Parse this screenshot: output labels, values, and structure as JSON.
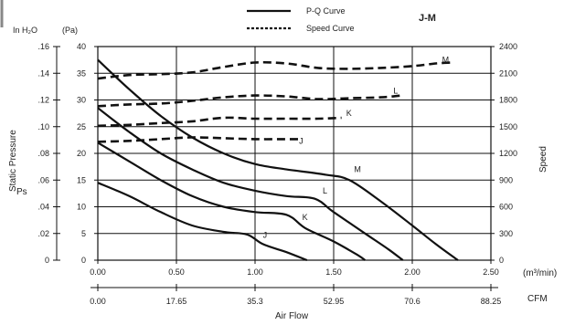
{
  "chart_data": {
    "type": "line",
    "title": "J-M",
    "legend": [
      {
        "label": "P-Q Curve",
        "style": "solid"
      },
      {
        "label": "Speed Curve",
        "style": "dotted"
      }
    ],
    "xlabel": "Air Flow",
    "x_unit_primary": "(m³/min)",
    "x_unit_secondary": "CFM",
    "xlim": [
      0,
      2.5
    ],
    "x_ticks": [
      "0.00",
      "0.50",
      "1.00",
      "1.50",
      "2.00",
      "2.50"
    ],
    "x_secondary_ticks": [
      "0.00",
      "17.65",
      "35.3",
      "52.95",
      "70.6",
      "88.25"
    ],
    "ylabel_left": "Static Pressure",
    "ylabel_left_symbol": "Ps",
    "y_unit_inh2o": "In H₂O",
    "y_unit_pa": "(Pa)",
    "ylim": [
      0,
      40
    ],
    "y_ticks_pa": [
      "0",
      "5",
      "10",
      "15",
      "20",
      "25",
      "30",
      "35",
      "40"
    ],
    "y_ticks_inh2o": [
      "0",
      ".02",
      ".04",
      ".06",
      ".08",
      ".10",
      ".12",
      ".14",
      ".16"
    ],
    "ylabel_right": "Speed",
    "y2lim": [
      0,
      2400
    ],
    "y2_ticks": [
      "0",
      "300",
      "600",
      "900",
      "1200",
      "1500",
      "1800",
      "2100",
      "2400"
    ],
    "grid": true,
    "pq_series": [
      {
        "name": "M",
        "label_at": [
          1.63,
          16.5
        ],
        "points": [
          [
            0,
            37.5
          ],
          [
            0.2,
            32
          ],
          [
            0.4,
            27
          ],
          [
            0.6,
            23
          ],
          [
            0.8,
            20
          ],
          [
            1.0,
            18
          ],
          [
            1.2,
            17
          ],
          [
            1.45,
            16
          ],
          [
            1.6,
            15
          ],
          [
            1.8,
            11
          ],
          [
            2.0,
            6.5
          ],
          [
            2.15,
            3
          ],
          [
            2.29,
            0
          ]
        ]
      },
      {
        "name": "L",
        "label_at": [
          1.43,
          12.5
        ],
        "points": [
          [
            0,
            28.5
          ],
          [
            0.2,
            24
          ],
          [
            0.4,
            20
          ],
          [
            0.6,
            17
          ],
          [
            0.8,
            14.5
          ],
          [
            1.0,
            13
          ],
          [
            1.2,
            12
          ],
          [
            1.38,
            11.5
          ],
          [
            1.5,
            9
          ],
          [
            1.7,
            5
          ],
          [
            1.85,
            2
          ],
          [
            1.94,
            0
          ]
        ]
      },
      {
        "name": "K",
        "label_at": [
          1.3,
          7.5
        ],
        "points": [
          [
            0,
            22
          ],
          [
            0.2,
            18.5
          ],
          [
            0.4,
            15
          ],
          [
            0.6,
            12
          ],
          [
            0.8,
            10
          ],
          [
            1.0,
            9
          ],
          [
            1.2,
            8.5
          ],
          [
            1.32,
            6
          ],
          [
            1.5,
            3.5
          ],
          [
            1.65,
            1
          ],
          [
            1.7,
            0
          ]
        ]
      },
      {
        "name": "J",
        "label_at": [
          1.05,
          4.2
        ],
        "points": [
          [
            0,
            14.5
          ],
          [
            0.2,
            12
          ],
          [
            0.4,
            9
          ],
          [
            0.6,
            6.5
          ],
          [
            0.8,
            5.3
          ],
          [
            0.95,
            4.8
          ],
          [
            1.05,
            3
          ],
          [
            1.2,
            1.5
          ],
          [
            1.33,
            0
          ]
        ]
      }
    ],
    "speed_series": [
      {
        "name": "M",
        "label_at": [
          2.19,
          2220
        ],
        "points": [
          [
            0,
            2040
          ],
          [
            0.2,
            2080
          ],
          [
            0.4,
            2090
          ],
          [
            0.6,
            2110
          ],
          [
            0.8,
            2170
          ],
          [
            1.0,
            2220
          ],
          [
            1.2,
            2210
          ],
          [
            1.4,
            2160
          ],
          [
            1.6,
            2150
          ],
          [
            1.8,
            2160
          ],
          [
            2.0,
            2180
          ],
          [
            2.15,
            2210
          ],
          [
            2.25,
            2220
          ]
        ]
      },
      {
        "name": "L",
        "label_at": [
          1.88,
          1870
        ],
        "points": [
          [
            0,
            1730
          ],
          [
            0.2,
            1750
          ],
          [
            0.4,
            1760
          ],
          [
            0.6,
            1790
          ],
          [
            0.8,
            1830
          ],
          [
            1.0,
            1850
          ],
          [
            1.2,
            1840
          ],
          [
            1.4,
            1810
          ],
          [
            1.6,
            1820
          ],
          [
            1.8,
            1830
          ],
          [
            1.93,
            1850
          ]
        ]
      },
      {
        "name": "K",
        "label_at": [
          1.58,
          1620
        ],
        "points": [
          [
            0,
            1510
          ],
          [
            0.2,
            1520
          ],
          [
            0.4,
            1540
          ],
          [
            0.6,
            1560
          ],
          [
            0.8,
            1600
          ],
          [
            1.0,
            1590
          ],
          [
            1.2,
            1590
          ],
          [
            1.4,
            1590
          ],
          [
            1.55,
            1600
          ]
        ]
      },
      {
        "name": "J",
        "label_at": [
          1.28,
          1310
        ],
        "points": [
          [
            0,
            1330
          ],
          [
            0.2,
            1340
          ],
          [
            0.4,
            1360
          ],
          [
            0.6,
            1380
          ],
          [
            0.8,
            1370
          ],
          [
            1.0,
            1360
          ],
          [
            1.2,
            1360
          ],
          [
            1.3,
            1360
          ]
        ]
      }
    ]
  }
}
